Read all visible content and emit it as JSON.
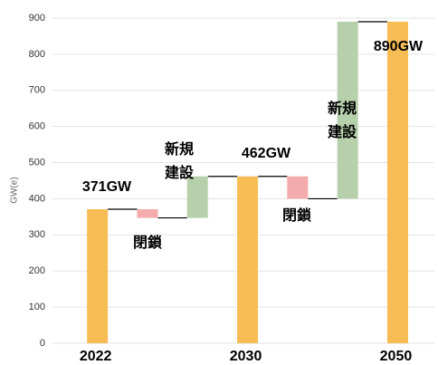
{
  "chart_data": {
    "type": "waterfall",
    "y_label": "GW(e)",
    "categories": [
      "2022",
      null,
      null,
      "2030",
      null,
      null,
      "2050"
    ],
    "values": [
      371,
      -24,
      115,
      462,
      -62,
      490,
      890
    ],
    "value_labels": [
      "371GW",
      null,
      null,
      "462GW",
      null,
      null,
      "890GW"
    ],
    "segment_labels": [
      null,
      [
        "閉鎖"
      ],
      [
        "新規",
        "建設"
      ],
      null,
      [
        "閉鎖"
      ],
      [
        "新規",
        "建設"
      ],
      null
    ],
    "totals": [
      true,
      false,
      false,
      true,
      false,
      false,
      true
    ],
    "colors": {
      "total": "#f6bd55",
      "decrease": "#f4abab",
      "increase": "#b7d0ac"
    },
    "ylim": [
      0,
      900
    ],
    "yticks": [
      0,
      100,
      200,
      300,
      400,
      500,
      600,
      700,
      800,
      900
    ],
    "grid": true
  }
}
